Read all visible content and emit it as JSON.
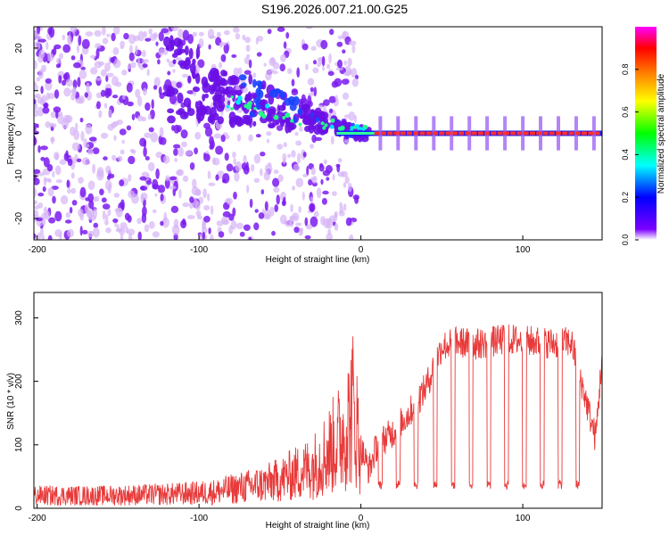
{
  "title": "S196.2026.007.21.00.G25",
  "chart_data": [
    {
      "type": "heatmap",
      "xlabel": "Height of straight line (km)",
      "ylabel": "Frequency (Hz)",
      "xlim": [
        -202,
        149
      ],
      "ylim": [
        -25,
        25
      ],
      "xticks": [
        -200,
        -100,
        0,
        100
      ],
      "yticks": [
        -20,
        -10,
        0,
        10,
        20
      ],
      "colorbar": {
        "label": "Normalized spectral amplitude",
        "range": [
          0,
          1
        ],
        "ticks": [
          "0.0",
          "0.2",
          "0.4",
          "0.6",
          "0.8"
        ],
        "colors": [
          "#ffffff",
          "#7b00ff",
          "#0000ff",
          "#00ffff",
          "#00ff00",
          "#ffff00",
          "#ff8000",
          "#ff0000",
          "#ff00ff"
        ]
      },
      "features": {
        "noise_region_x": [
          -202,
          -40
        ],
        "signal_onset_x": -100,
        "carrier_line_y": 0,
        "strong_carrier_x": [
          10,
          149
        ],
        "sideband_spike_spacing_km": 11,
        "sideband_spike_start_km": 12
      }
    },
    {
      "type": "line",
      "xlabel": "Height of straight line (km)",
      "ylabel": "SNR (10 * v/v)",
      "xlim": [
        -202,
        149
      ],
      "ylim": [
        0,
        340
      ],
      "xticks": [
        -200,
        -100,
        0,
        100
      ],
      "yticks": [
        0,
        100,
        200,
        300
      ],
      "series": [
        {
          "name": "SNR",
          "color": "#e83a3a",
          "x": [
            -202,
            -180,
            -160,
            -140,
            -120,
            -100,
            -90,
            -80,
            -70,
            -60,
            -50,
            -40,
            -30,
            -20,
            -15,
            -10,
            -5,
            0,
            5,
            10,
            20,
            30,
            40,
            50,
            60,
            70,
            80,
            90,
            100,
            110,
            120,
            130,
            140,
            145,
            149
          ],
          "y": [
            20,
            20,
            20,
            21,
            22,
            24,
            26,
            30,
            34,
            38,
            45,
            55,
            65,
            90,
            105,
            120,
            160,
            95,
            60,
            100,
            120,
            150,
            190,
            255,
            262,
            258,
            262,
            266,
            264,
            262,
            260,
            262,
            160,
            110,
            240
          ],
          "dips_x": [
            12,
            23,
            34,
            46,
            57,
            68,
            79,
            90,
            101,
            112,
            123,
            134
          ],
          "dip_y": 30
        }
      ]
    }
  ]
}
